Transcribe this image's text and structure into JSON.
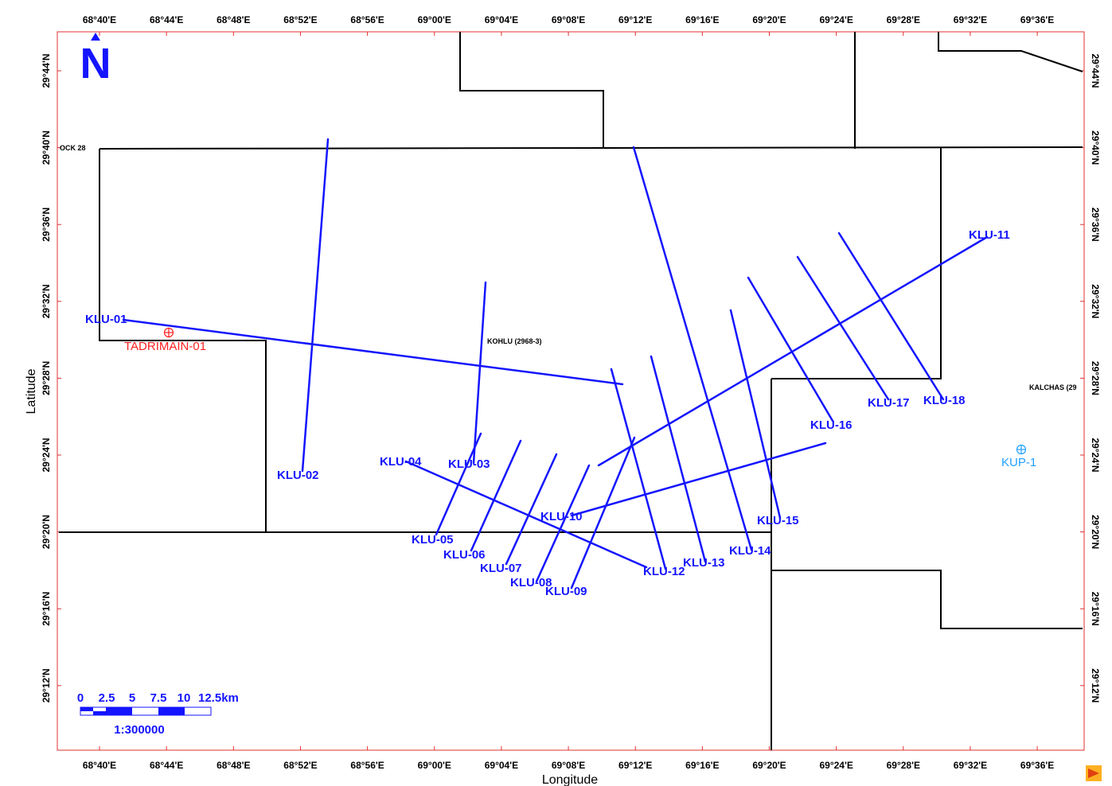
{
  "map": {
    "x_axis_title": "Longitude",
    "y_axis_title": "Latitude",
    "longitude_ticks": [
      "68°40'E",
      "68°44'E",
      "68°48'E",
      "68°52'E",
      "68°56'E",
      "69°00'E",
      "69°04'E",
      "69°08'E",
      "69°12'E",
      "69°16'E",
      "69°20'E",
      "69°24'E",
      "69°28'E",
      "69°32'E",
      "69°36'E"
    ],
    "latitude_ticks": [
      "29°44'N",
      "29°40'N",
      "29°36'N",
      "29°32'N",
      "29°28'N",
      "29°24'N",
      "29°20'N",
      "29°16'N",
      "29°12'N"
    ],
    "north_arrow": "N",
    "blocks": [
      {
        "label": "OCK 28"
      },
      {
        "label": "KOHLU (2968-3)"
      },
      {
        "label": "KALCHAS (29"
      }
    ],
    "wells": [
      {
        "label": "TADRIMAIN-01",
        "color": "#ff2020"
      },
      {
        "label": "KUP-1",
        "color": "#20a0ff"
      }
    ],
    "seismic_lines": [
      "KLU-01",
      "KLU-02",
      "KLU-03",
      "KLU-04",
      "KLU-05",
      "KLU-06",
      "KLU-07",
      "KLU-08",
      "KLU-09",
      "KLU-10",
      "KLU-11",
      "KLU-12",
      "KLU-13",
      "KLU-14",
      "KLU-15",
      "KLU-16",
      "KLU-17",
      "KLU-18"
    ],
    "line_color": "#1414ff",
    "scale_bar": {
      "ticks": [
        "0",
        "2.5",
        "5",
        "7.5",
        "10",
        "12.5km"
      ],
      "ratio": "1:300000"
    },
    "logo": "petrel-logo-icon"
  }
}
